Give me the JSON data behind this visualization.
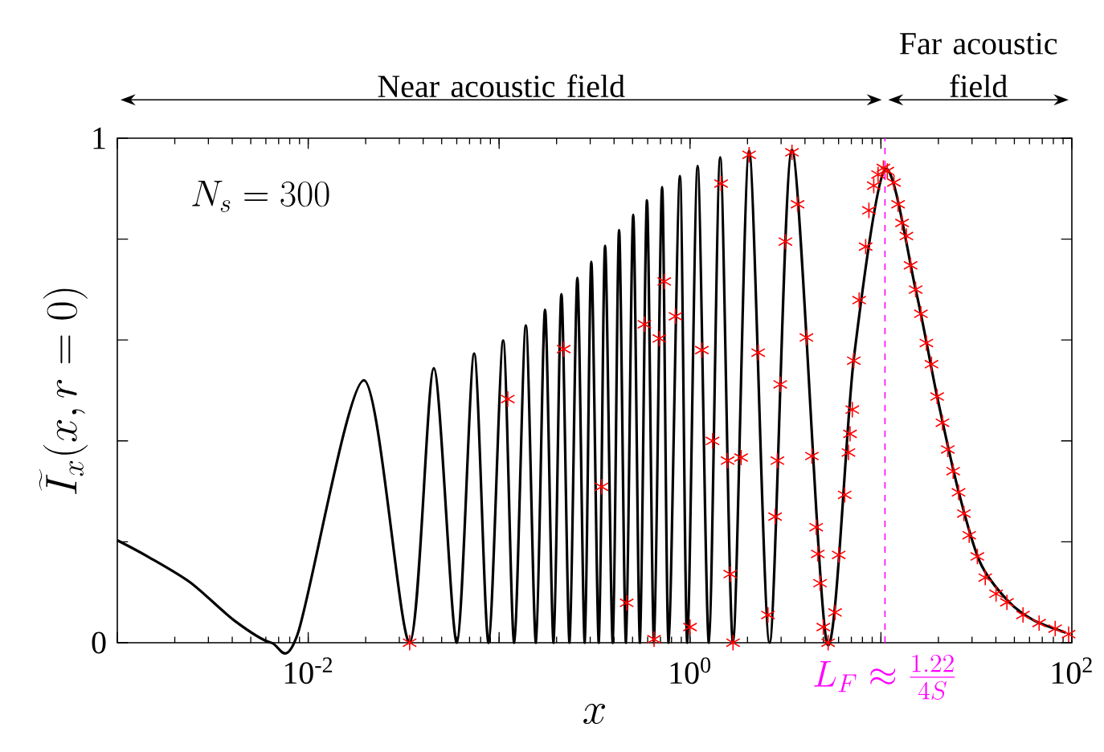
{
  "chart_data": {
    "type": "line",
    "xlabel": "x",
    "ylabel": "\\widetilde{I}_x(x, r=0)",
    "annotations": [
      "N_s = 300",
      "Near acoustic field",
      "Far acoustic field"
    ],
    "xlim": [
      0.001,
      100
    ],
    "ylim": [
      0,
      1
    ],
    "log": "x",
    "grid": false,
    "xticks": [
      {
        "value": 0.001,
        "label": null
      },
      {
        "value": 0.01,
        "label": "10$^{-2}$"
      },
      {
        "value": 0.1,
        "label": null
      },
      {
        "value": 1,
        "label": "10$^{0}$"
      },
      {
        "value": 10,
        "label": null
      },
      {
        "value": 100,
        "label": "10$^{2}$"
      }
    ],
    "yticks": [
      0,
      {
        "value": 0.2,
        "label": null
      },
      {
        "value": 0.4,
        "label": null
      },
      {
        "value": 0.6,
        "label": null
      },
      {
        "value": 0.8,
        "label": null
      },
      1
    ],
    "ref_lines": [
      {
        "axis": "x",
        "value": 10.5,
        "label": "L_F \\approx \\frac{1.22}{4S}",
        "color": "#ff00ff",
        "line_style": "dashed"
      }
    ],
    "series": [
      {
        "color": "#000000",
        "marker": "none",
        "line_style": "solid",
        "x": [
          0.001,
          0.00144,
          0.00242,
          0.0041,
          0.0064,
          0.0088,
          0.0196,
          0.034,
          0.0455,
          0.0601,
          0.074,
          0.0881,
          0.105,
          0.12,
          0.138,
          0.156,
          0.174,
          0.193,
          0.212,
          0.234,
          0.257,
          0.281,
          0.304,
          0.333,
          0.359,
          0.394,
          0.425,
          0.462,
          0.504,
          0.547,
          0.595,
          0.648,
          0.714,
          0.773,
          0.885,
          0.968,
          1.096,
          1.256,
          1.439,
          1.68,
          2.04,
          2.61,
          3.42,
          5.21,
          7.21,
          10.5,
          15.2,
          19.7,
          25.5,
          33.0,
          45.7,
          62.7,
          93.1
        ],
        "values": [
          0.203,
          0.171,
          0.119,
          0.044,
          0,
          0.017,
          0.52,
          0,
          0.544,
          0,
          0.573,
          0,
          0.599,
          0,
          0.629,
          0,
          0.66,
          0,
          0.691,
          0,
          0.723,
          0,
          0.755,
          0,
          0.787,
          0,
          0.818,
          0,
          0.848,
          0,
          0.877,
          0,
          0.903,
          0,
          0.925,
          0,
          0.945,
          0,
          0.962,
          0,
          0.975,
          0,
          0.977,
          0,
          0.563,
          0.938,
          0.7,
          0.488,
          0.3,
          0.16,
          0.085,
          0.045,
          0.02
        ]
      },
      {
        "type": "scatter",
        "color": "#ff0000",
        "marker": "cross",
        "x": [
          0.034,
          0.111,
          0.218,
          0.344,
          0.466,
          0.577,
          0.648,
          0.691,
          0.733,
          0.839,
          1.0,
          1.153,
          1.312,
          1.455,
          1.573,
          1.625,
          1.68,
          1.852,
          2.04,
          2.275,
          2.56,
          2.79,
          2.87,
          2.97,
          3.16,
          3.42,
          3.66,
          4.07,
          4.35,
          4.58,
          4.67,
          4.8,
          4.99,
          5.29,
          5.75,
          6.01,
          6.46,
          6.76,
          6.89,
          7.08,
          7.21,
          7.69,
          8.32,
          8.65,
          9.17,
          9.66,
          10.3,
          10.8,
          11.7,
          12.3,
          12.9,
          13.6,
          14.3,
          15.2,
          16.2,
          17.3,
          18.4,
          19.7,
          21.0,
          22.4,
          23.9,
          25.5,
          27.2,
          29.0,
          32.0,
          35.2,
          40.1,
          45.7,
          55.5,
          67.4,
          81.8,
          96.2
        ],
        "values": [
          0,
          0.483,
          0.582,
          0.309,
          0.079,
          0.631,
          0.007,
          0.603,
          0.716,
          0.647,
          0.031,
          0.58,
          0.4,
          0.91,
          0.361,
          0.136,
          0,
          0.367,
          0.967,
          0.575,
          0.055,
          0.25,
          0.361,
          0.512,
          0.795,
          0.972,
          0.869,
          0.605,
          0.37,
          0.229,
          0.176,
          0.118,
          0.031,
          0,
          0.06,
          0.174,
          0.293,
          0.377,
          0.414,
          0.462,
          0.559,
          0.679,
          0.785,
          0.857,
          0.906,
          0.928,
          0.941,
          0.935,
          0.912,
          0.869,
          0.832,
          0.806,
          0.748,
          0.7,
          0.652,
          0.594,
          0.552,
          0.488,
          0.436,
          0.383,
          0.34,
          0.298,
          0.256,
          0.213,
          0.171,
          0.129,
          0.097,
          0.08,
          0.055,
          0.039,
          0.028,
          0.017
        ]
      }
    ]
  }
}
